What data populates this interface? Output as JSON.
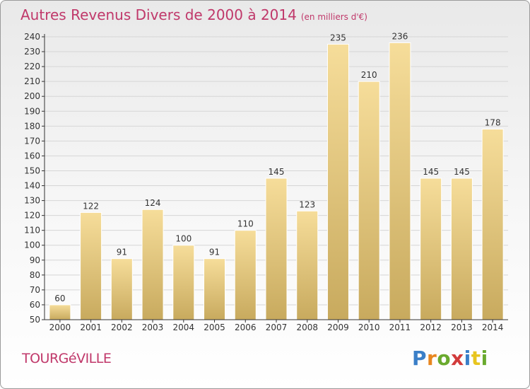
{
  "title": {
    "main": "Autres Revenus Divers de 2000 à 2014",
    "unit": "(en milliers d'€)"
  },
  "location": "TOURGéVILLE",
  "brand": {
    "letters": [
      "P",
      "r",
      "o",
      "x",
      "i",
      "t",
      "i"
    ],
    "colors": [
      "#3a7fc8",
      "#e8861f",
      "#6aaa2e",
      "#d23b3b",
      "#3a7fc8",
      "#e8c51f",
      "#6aaa2e"
    ]
  },
  "chart_data": {
    "type": "bar",
    "categories": [
      "2000",
      "2001",
      "2002",
      "2003",
      "2004",
      "2005",
      "2006",
      "2007",
      "2008",
      "2009",
      "2010",
      "2011",
      "2012",
      "2013",
      "2014"
    ],
    "values": [
      60,
      122,
      91,
      124,
      100,
      91,
      110,
      145,
      123,
      235,
      210,
      236,
      145,
      145,
      178
    ],
    "title": "Autres Revenus Divers de 2000 à 2014",
    "ylim": [
      50,
      240
    ],
    "yticks": [
      50,
      60,
      70,
      80,
      90,
      100,
      110,
      120,
      130,
      140,
      150,
      160,
      170,
      180,
      190,
      200,
      210,
      220,
      230,
      240
    ],
    "grid": true,
    "colors": {
      "bar_light": "#f6dd9a",
      "bar_dark": "#c8aa5e",
      "grid": "#d6d6d6",
      "axis": "#333333"
    }
  }
}
